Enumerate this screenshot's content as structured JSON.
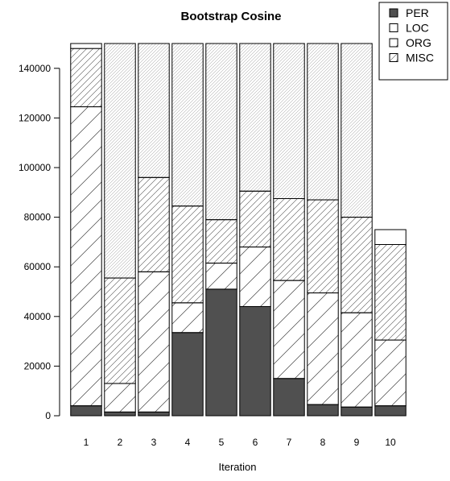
{
  "chart_data": {
    "type": "bar",
    "stacked": true,
    "title": "Bootstrap Cosine",
    "xlabel": "Iteration",
    "ylabel": "",
    "categories": [
      "1",
      "2",
      "3",
      "4",
      "5",
      "6",
      "7",
      "8",
      "9",
      "10"
    ],
    "ylim": [
      0,
      150000
    ],
    "yticks": [
      0,
      20000,
      40000,
      60000,
      80000,
      100000,
      120000,
      140000
    ],
    "ytick_labels": [
      "0",
      "20000",
      "40000",
      "60000",
      "80000",
      "100000",
      "120000",
      "140000"
    ],
    "legend_position": "top-right",
    "grid": false,
    "series": [
      {
        "name": "PER",
        "fill": "#505050",
        "pattern": "solid",
        "values": [
          4000,
          1500,
          1500,
          33500,
          51000,
          44000,
          15000,
          4500,
          3500,
          4000
        ]
      },
      {
        "name": "LOC",
        "fill": "#ffffff",
        "pattern": "none",
        "values": [
          0,
          0,
          0,
          0,
          0,
          0,
          0,
          0,
          0,
          0
        ]
      },
      {
        "name": "ORG",
        "fill": "#ffffff",
        "pattern": "wide-diagonal",
        "values": [
          120500,
          11500,
          56500,
          12000,
          10500,
          24000,
          39500,
          45000,
          38000,
          26500
        ]
      },
      {
        "name": "MISC",
        "fill": "#ffffff",
        "pattern": "medium-diagonal",
        "values": [
          23500,
          42500,
          38000,
          39000,
          17500,
          22500,
          33000,
          37500,
          38500,
          38500
        ]
      },
      {
        "name": "",
        "fill": "#ffffff",
        "pattern": "dense-diagonal",
        "values": [
          0,
          94500,
          54000,
          65500,
          71000,
          59500,
          62500,
          63000,
          70000,
          0
        ]
      },
      {
        "name": "",
        "fill": "#ffffff",
        "pattern": "none",
        "values": [
          2000,
          0,
          0,
          0,
          0,
          0,
          0,
          0,
          0,
          6000
        ]
      }
    ]
  }
}
